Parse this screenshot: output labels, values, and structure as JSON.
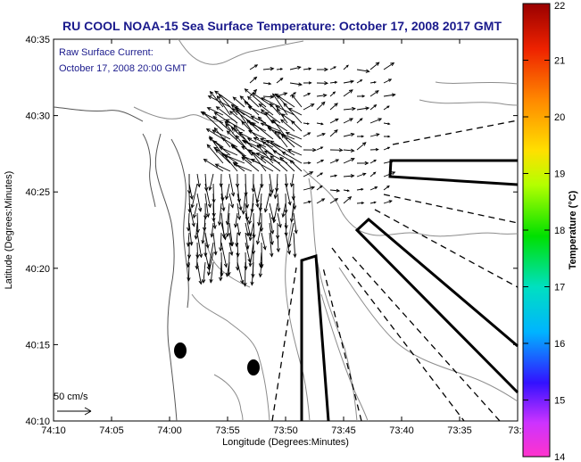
{
  "figure": {
    "title": "RU COOL  NOAA-15  Sea Surface Temperature:  October 17, 2008 2017 GMT",
    "annotation_line1": "Raw Surface Current:",
    "annotation_line2": "October 17, 2008 20:00 GMT",
    "scale_label": "50 cm/s"
  },
  "axes": {
    "xlabel": "Longitude (Degrees:Minutes)",
    "ylabel": "Latitude (Degrees:Minutes)",
    "x_ticks": [
      "74:10",
      "74:05",
      "74:00",
      "73:55",
      "73:50",
      "73:45",
      "73:40",
      "73:35",
      "73:3"
    ],
    "y_ticks": [
      "40:35",
      "40:30",
      "40:25",
      "40:20",
      "40:15",
      "40:10"
    ]
  },
  "colorbar": {
    "label": "Temperature (°C)",
    "min": 14,
    "max": 22,
    "ticks": [
      "22",
      "21",
      "20",
      "19",
      "18",
      "17",
      "16",
      "15",
      "14"
    ],
    "stops": [
      {
        "value": 14,
        "color": "#ff33cc"
      },
      {
        "value": 14.6,
        "color": "#cc33ff"
      },
      {
        "value": 15.3,
        "color": "#3311ff"
      },
      {
        "value": 16.2,
        "color": "#00b4ff"
      },
      {
        "value": 17.0,
        "color": "#00e0c0"
      },
      {
        "value": 17.9,
        "color": "#00e000"
      },
      {
        "value": 18.8,
        "color": "#b4ff00"
      },
      {
        "value": 19.4,
        "color": "#ffe000"
      },
      {
        "value": 20.3,
        "color": "#ff8800"
      },
      {
        "value": 21.2,
        "color": "#ee2200"
      },
      {
        "value": 22,
        "color": "#990000"
      }
    ]
  }
}
